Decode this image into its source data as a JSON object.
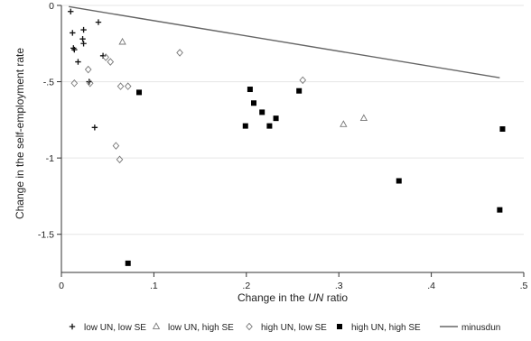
{
  "chart_data": {
    "type": "scatter",
    "xlabel_prefix": "Change in the ",
    "xlabel_italic": "UN",
    "xlabel_suffix": " ratio",
    "ylabel": "Change in the self-employment rate",
    "xlim": [
      0,
      0.5
    ],
    "ylim": [
      -1.75,
      0
    ],
    "x_ticks": [
      0,
      0.1,
      0.2,
      0.3,
      0.4,
      0.5
    ],
    "x_tick_labels": [
      "0",
      ".1",
      ".2",
      ".3",
      ".4",
      ".5"
    ],
    "y_ticks": [
      0,
      -0.5,
      -1,
      -1.5
    ],
    "y_tick_labels": [
      "0",
      "-.5",
      "-1",
      "-1.5"
    ],
    "grid": "horizontal",
    "legend_position": "bottom",
    "series": [
      {
        "name": "low UN, low SE",
        "marker": "plus",
        "color": "#111111",
        "points": [
          [
            0.01,
            -0.04
          ],
          [
            0.012,
            -0.18
          ],
          [
            0.013,
            -0.28
          ],
          [
            0.014,
            -0.29
          ],
          [
            0.018,
            -0.37
          ],
          [
            0.023,
            -0.22
          ],
          [
            0.024,
            -0.25
          ],
          [
            0.024,
            -0.16
          ],
          [
            0.03,
            -0.5
          ],
          [
            0.04,
            -0.11
          ],
          [
            0.045,
            -0.33
          ],
          [
            0.036,
            -0.8
          ]
        ]
      },
      {
        "name": "low UN, high SE",
        "marker": "triangle",
        "color": "#777777",
        "points": [
          [
            0.066,
            -0.24
          ],
          [
            0.305,
            -0.78
          ],
          [
            0.327,
            -0.74
          ]
        ]
      },
      {
        "name": "high UN, low SE",
        "marker": "diamond",
        "color": "#777777",
        "points": [
          [
            0.014,
            -0.51
          ],
          [
            0.029,
            -0.42
          ],
          [
            0.031,
            -0.51
          ],
          [
            0.048,
            -0.34
          ],
          [
            0.053,
            -0.37
          ],
          [
            0.064,
            -0.53
          ],
          [
            0.072,
            -0.53
          ],
          [
            0.059,
            -0.92
          ],
          [
            0.063,
            -1.01
          ],
          [
            0.128,
            -0.31
          ],
          [
            0.261,
            -0.49
          ]
        ]
      },
      {
        "name": "high UN, high SE",
        "marker": "square",
        "color": "#000000",
        "points": [
          [
            0.084,
            -0.57
          ],
          [
            0.072,
            -1.69
          ],
          [
            0.199,
            -0.79
          ],
          [
            0.204,
            -0.55
          ],
          [
            0.208,
            -0.64
          ],
          [
            0.217,
            -0.7
          ],
          [
            0.225,
            -0.79
          ],
          [
            0.232,
            -0.74
          ],
          [
            0.257,
            -0.56
          ],
          [
            0.365,
            -1.15
          ],
          [
            0.474,
            -1.34
          ],
          [
            0.477,
            -0.81
          ]
        ]
      },
      {
        "name": "minusdun",
        "marker": "line",
        "color": "#666666",
        "points": [
          [
            0.008,
            -0.008
          ],
          [
            0.474,
            -0.474
          ]
        ]
      }
    ]
  }
}
